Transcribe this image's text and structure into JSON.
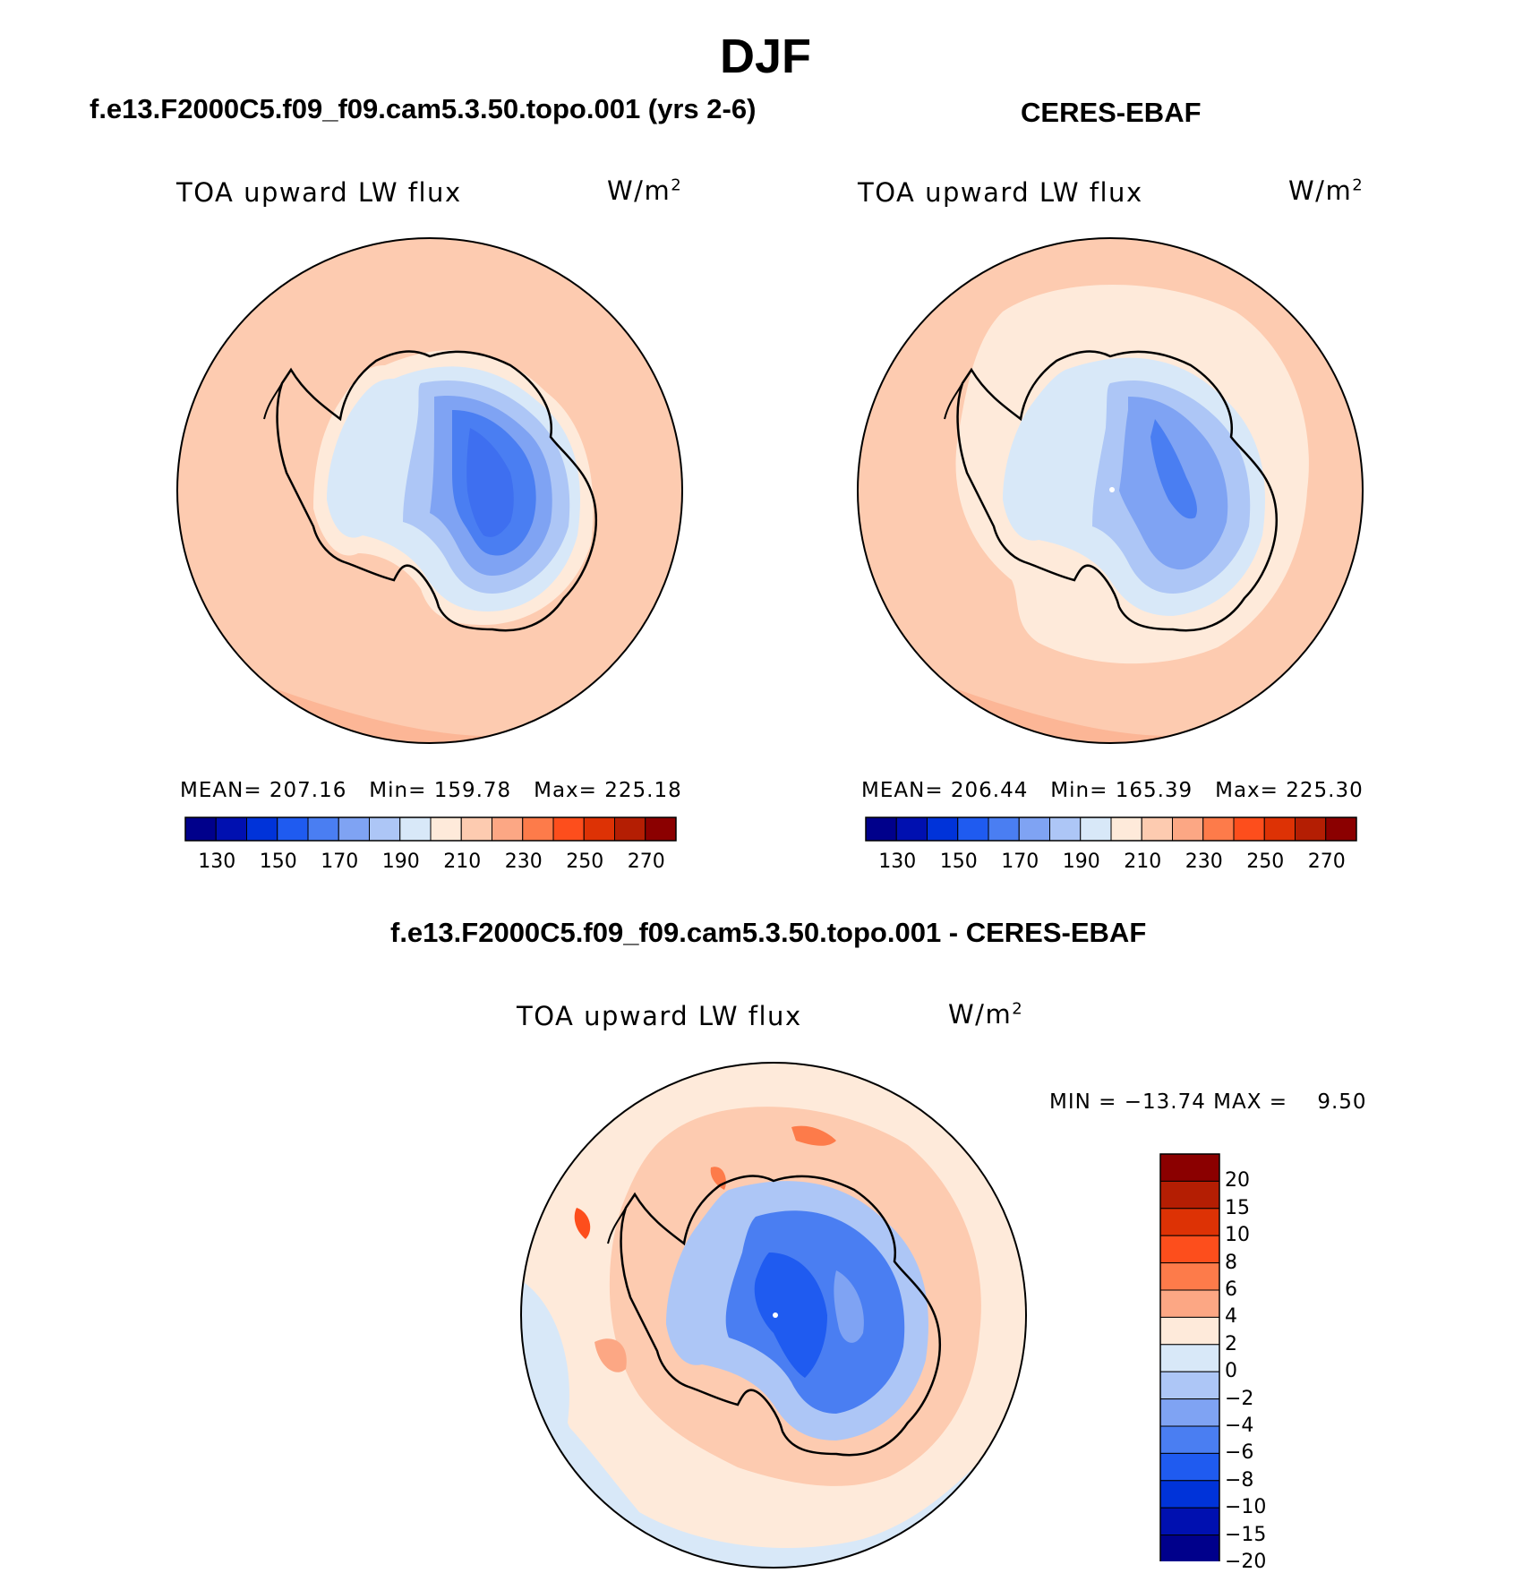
{
  "title": "DJF",
  "panels": {
    "model": {
      "case": "f.e13.F2000C5.f09_f09.cam5.3.50.topo.001 (yrs 2-6)",
      "variable": "TOA upward LW flux",
      "units": "W/m",
      "units_exponent": "2",
      "stats": "MEAN= 207.16   Min= 159.78   Max= 225.18"
    },
    "obs": {
      "case": "CERES-EBAF",
      "variable": "TOA upward LW flux",
      "units": "W/m",
      "units_exponent": "2",
      "stats": "MEAN= 206.44   Min= 165.39   Max= 225.30"
    },
    "diff": {
      "case": "f.e13.F2000C5.f09_f09.cam5.3.50.topo.001 - CERES-EBAF",
      "variable": "TOA upward LW flux",
      "units": "W/m",
      "units_exponent": "2",
      "minmax": "MIN = −13.74 MAX =    9.50"
    }
  },
  "colorbar_main": {
    "labels": [
      "130",
      "150",
      "170",
      "190",
      "210",
      "230",
      "250",
      "270"
    ],
    "colors": [
      "#00008b",
      "#0010b0",
      "#0033d9",
      "#1f5bf0",
      "#4a7ef2",
      "#7fa3f3",
      "#adc6f6",
      "#d8e8f8",
      "#feeada",
      "#fdcbb0",
      "#fca784",
      "#fd7b4a",
      "#fd4e1c",
      "#dd3205",
      "#b41e03",
      "#8b0000"
    ]
  },
  "colorbar_diff": {
    "labels": [
      "20",
      "15",
      "10",
      "8",
      "6",
      "4",
      "2",
      "0",
      "−2",
      "−4",
      "−6",
      "−8",
      "−10",
      "−15",
      "−20"
    ],
    "colors": [
      "#8b0000",
      "#b41e03",
      "#dd3205",
      "#fd4e1c",
      "#fd7b4a",
      "#fca784",
      "#feeada",
      "#d8e8f8",
      "#adc6f6",
      "#7fa3f3",
      "#4a7ef2",
      "#1f5bf0",
      "#0033d9",
      "#0010b0",
      "#00008b"
    ]
  }
}
